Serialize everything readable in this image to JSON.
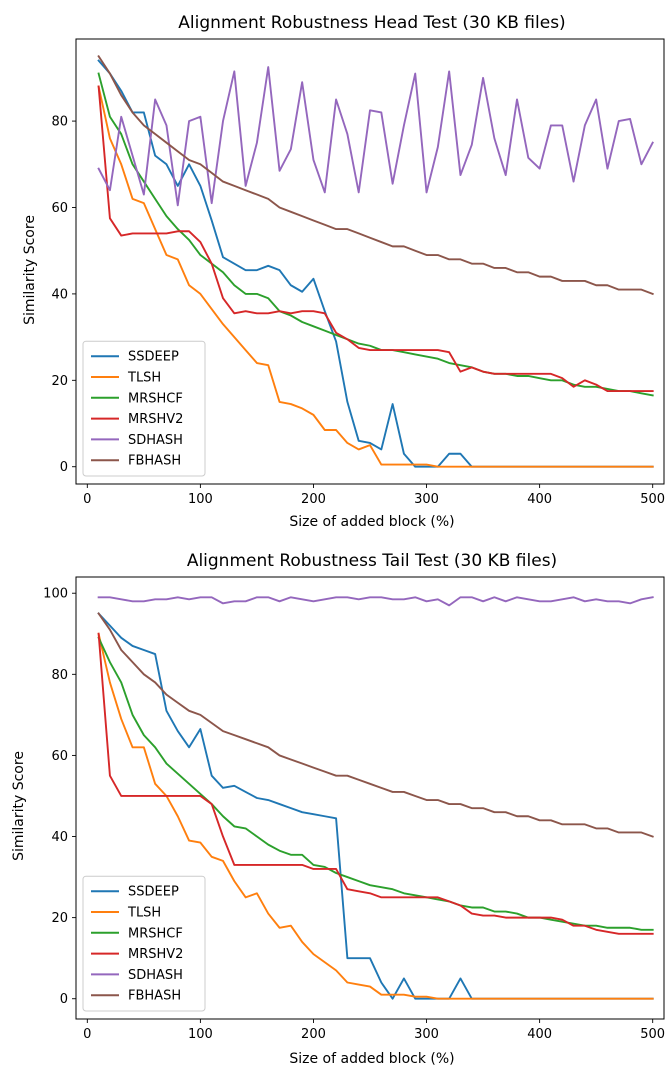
{
  "chart_data": [
    {
      "type": "line",
      "title": "Alignment Robustness Head Test (30 KB files)",
      "xlabel": "Size of added block (%)",
      "ylabel": "Similarity Score",
      "xlim": [
        -10,
        510
      ],
      "ylim": [
        -4,
        99
      ],
      "xticks": [
        0,
        100,
        200,
        300,
        400,
        500
      ],
      "yticks": [
        0,
        20,
        40,
        60,
        80
      ],
      "grid": false,
      "legend_position": "lower-left",
      "x": [
        10,
        20,
        30,
        40,
        50,
        60,
        70,
        80,
        90,
        100,
        110,
        120,
        130,
        140,
        150,
        160,
        170,
        180,
        190,
        200,
        210,
        220,
        230,
        240,
        250,
        260,
        270,
        280,
        290,
        300,
        310,
        320,
        330,
        340,
        350,
        360,
        370,
        380,
        390,
        400,
        410,
        420,
        430,
        440,
        450,
        460,
        470,
        480,
        490,
        500
      ],
      "series": [
        {
          "name": "SSDEEP",
          "color": "#1f77b4",
          "values": [
            94,
            91,
            87,
            82,
            82,
            72,
            70,
            65,
            70,
            65,
            57,
            48.5,
            47,
            45.5,
            45.5,
            46.5,
            45.5,
            42,
            40.5,
            43.5,
            36,
            29,
            15,
            6,
            5.5,
            4,
            14.5,
            3,
            0,
            0,
            0,
            3,
            3,
            0,
            0,
            0,
            0,
            0,
            0,
            0,
            0,
            0,
            0,
            0,
            0,
            0,
            0,
            0,
            0,
            0
          ]
        },
        {
          "name": "TLSH",
          "color": "#ff7f0e",
          "values": [
            88,
            76,
            70,
            62,
            61,
            55,
            49,
            48,
            42,
            40,
            36.5,
            33,
            30,
            27,
            24,
            23.5,
            15,
            14.5,
            13.5,
            12,
            8.5,
            8.5,
            5.5,
            4,
            5,
            0.5,
            0.5,
            0.5,
            0.5,
            0.5,
            0,
            0,
            0,
            0,
            0,
            0,
            0,
            0,
            0,
            0,
            0,
            0,
            0,
            0,
            0,
            0,
            0,
            0,
            0,
            0
          ]
        },
        {
          "name": "MRSHCF",
          "color": "#2ca02c",
          "values": [
            91,
            81,
            77,
            70,
            66,
            62,
            58,
            55,
            52.5,
            49,
            47,
            45,
            42,
            40,
            40,
            39,
            36,
            35,
            33.5,
            32.5,
            31.5,
            30.5,
            29.5,
            28.5,
            28,
            27,
            27,
            26.5,
            26,
            25.5,
            25,
            24,
            23.5,
            23,
            22,
            21.5,
            21.5,
            21,
            21,
            20.5,
            20,
            20,
            19,
            18.5,
            18.5,
            18,
            17.5,
            17.5,
            17,
            16.5
          ]
        },
        {
          "name": "MRSHV2",
          "color": "#d62728",
          "values": [
            88,
            57.5,
            53.5,
            54,
            54,
            54,
            54,
            54.5,
            54.5,
            52,
            47,
            39,
            35.5,
            36,
            35.5,
            35.5,
            36,
            35.5,
            36,
            36,
            35.5,
            31,
            29.5,
            27.5,
            27,
            27,
            27,
            27,
            27,
            27,
            27,
            26.5,
            22,
            23,
            22,
            21.5,
            21.5,
            21.5,
            21.5,
            21.5,
            21.5,
            20.5,
            18.5,
            20,
            19,
            17.5,
            17.5,
            17.5,
            17.5,
            17.5
          ]
        },
        {
          "name": "SDHASH",
          "color": "#9467bd",
          "values": [
            69,
            64,
            81,
            72,
            63,
            85,
            79,
            60.5,
            80,
            81,
            61,
            80,
            91.5,
            65,
            75,
            92.5,
            68.5,
            73.5,
            89,
            71,
            63.5,
            85,
            77,
            63.5,
            82.5,
            82,
            65.5,
            79,
            91,
            63.5,
            74,
            91.5,
            67.5,
            74.5,
            90,
            76,
            67.5,
            85,
            71.5,
            69,
            79,
            79,
            66,
            79,
            85,
            69,
            80,
            80.5,
            70,
            75
          ]
        },
        {
          "name": "FBHASH",
          "color": "#8c564b",
          "values": [
            95,
            91,
            86,
            82,
            79,
            77,
            75,
            73,
            71,
            70,
            68,
            66,
            65,
            64,
            63,
            62,
            60,
            59,
            58,
            57,
            56,
            55,
            55,
            54,
            53,
            52,
            51,
            51,
            50,
            49,
            49,
            48,
            48,
            47,
            47,
            46,
            46,
            45,
            45,
            44,
            44,
            43,
            43,
            43,
            42,
            42,
            41,
            41,
            41,
            40
          ]
        }
      ]
    },
    {
      "type": "line",
      "title": "Alignment Robustness Tail Test (30 KB files)",
      "xlabel": "Size of added block (%)",
      "ylabel": "Similarity Score",
      "xlim": [
        -10,
        510
      ],
      "ylim": [
        -5,
        104
      ],
      "xticks": [
        0,
        100,
        200,
        300,
        400,
        500
      ],
      "yticks": [
        0,
        20,
        40,
        60,
        80,
        100
      ],
      "grid": false,
      "legend_position": "lower-left",
      "x": [
        10,
        20,
        30,
        40,
        50,
        60,
        70,
        80,
        90,
        100,
        110,
        120,
        130,
        140,
        150,
        160,
        170,
        180,
        190,
        200,
        210,
        220,
        230,
        240,
        250,
        260,
        270,
        280,
        290,
        300,
        310,
        320,
        330,
        340,
        350,
        360,
        370,
        380,
        390,
        400,
        410,
        420,
        430,
        440,
        450,
        460,
        470,
        480,
        490,
        500
      ],
      "series": [
        {
          "name": "SSDEEP",
          "color": "#1f77b4",
          "values": [
            95,
            92,
            89,
            87,
            86,
            85,
            71,
            66,
            62,
            66.5,
            55,
            52,
            52.5,
            51,
            49.5,
            49,
            48,
            47,
            46,
            45.5,
            45,
            44.5,
            10,
            10,
            10,
            4,
            0,
            5,
            0,
            0,
            0,
            0,
            5,
            0,
            0,
            0,
            0,
            0,
            0,
            0,
            0,
            0,
            0,
            0,
            0,
            0,
            0,
            0,
            0,
            0
          ]
        },
        {
          "name": "TLSH",
          "color": "#ff7f0e",
          "values": [
            90,
            78,
            69,
            62,
            62,
            53,
            50,
            45,
            39,
            38.5,
            35,
            34,
            29,
            25,
            26,
            21,
            17.5,
            18,
            14,
            11,
            9,
            7,
            4,
            3.5,
            3,
            1,
            1,
            1,
            0.5,
            0.5,
            0,
            0,
            0,
            0,
            0,
            0,
            0,
            0,
            0,
            0,
            0,
            0,
            0,
            0,
            0,
            0,
            0,
            0,
            0,
            0
          ]
        },
        {
          "name": "MRSHCF",
          "color": "#2ca02c",
          "values": [
            89,
            83,
            78,
            70,
            65,
            62,
            58,
            55.5,
            53,
            50.5,
            48,
            45,
            42.5,
            42,
            40,
            38,
            36.5,
            35.5,
            35.5,
            33,
            32.5,
            31,
            30,
            29,
            28,
            27.5,
            27,
            26,
            25.5,
            25,
            24.5,
            24,
            23,
            22.5,
            22.5,
            21.5,
            21.5,
            21,
            20,
            20,
            19.5,
            19,
            18.5,
            18,
            18,
            17.5,
            17.5,
            17.5,
            17,
            17
          ]
        },
        {
          "name": "MRSHV2",
          "color": "#d62728",
          "values": [
            90,
            55,
            50,
            50,
            50,
            50,
            50,
            50,
            50,
            50,
            48,
            40,
            33,
            33,
            33,
            33,
            33,
            33,
            33,
            32,
            32,
            32,
            27,
            26.5,
            26,
            25,
            25,
            25,
            25,
            25,
            25,
            24,
            23,
            21,
            20.5,
            20.5,
            20,
            20,
            20,
            20,
            20,
            19.5,
            18,
            18,
            17,
            16.5,
            16,
            16,
            16,
            16
          ]
        },
        {
          "name": "SDHASH",
          "color": "#9467bd",
          "values": [
            99,
            99,
            98.5,
            98,
            98,
            98.5,
            98.5,
            99,
            98.5,
            99,
            99,
            97.5,
            98,
            98,
            99,
            99,
            98,
            99,
            98.5,
            98,
            98.5,
            99,
            99,
            98.5,
            99,
            99,
            98.5,
            98.5,
            99,
            98,
            98.5,
            97,
            99,
            99,
            98,
            99,
            98,
            99,
            98.5,
            98,
            98,
            98.5,
            99,
            98,
            98.5,
            98,
            98,
            97.5,
            98.5,
            99
          ]
        },
        {
          "name": "FBHASH",
          "color": "#8c564b",
          "values": [
            95,
            91,
            86,
            83,
            80,
            78,
            75,
            73,
            71,
            70,
            68,
            66,
            65,
            64,
            63,
            62,
            60,
            59,
            58,
            57,
            56,
            55,
            55,
            54,
            53,
            52,
            51,
            51,
            50,
            49,
            49,
            48,
            48,
            47,
            47,
            46,
            46,
            45,
            45,
            44,
            44,
            43,
            43,
            43,
            42,
            42,
            41,
            41,
            41,
            40
          ]
        }
      ]
    }
  ]
}
